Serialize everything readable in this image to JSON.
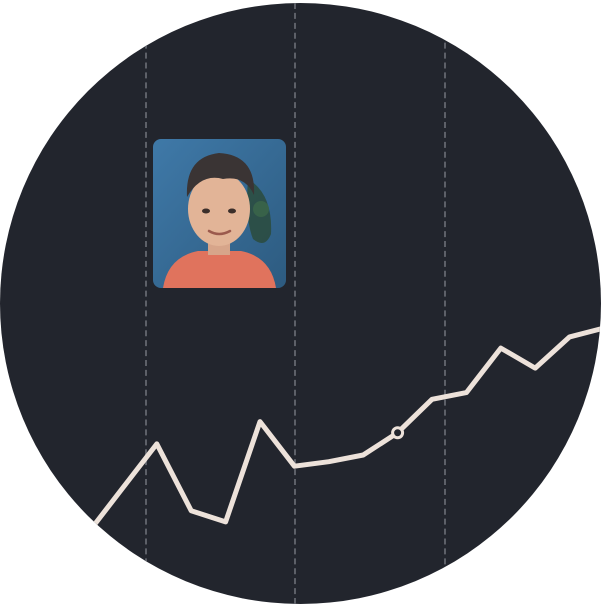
{
  "colors": {
    "background": "#22252d",
    "line": "#ede2da",
    "grid": "#5d6068",
    "marker_fill": "#22252d"
  },
  "avatar": {
    "icon": "profile-photo"
  },
  "chart_data": {
    "type": "line",
    "grid": "vertical-dashed",
    "series": [
      {
        "values": [
          0,
          2,
          4,
          1,
          0.5,
          5,
          3,
          3.2,
          3.5,
          4.5,
          6,
          6.3,
          8.3,
          7.4,
          8.8,
          9.2
        ]
      }
    ],
    "highlight_index": 9
  }
}
